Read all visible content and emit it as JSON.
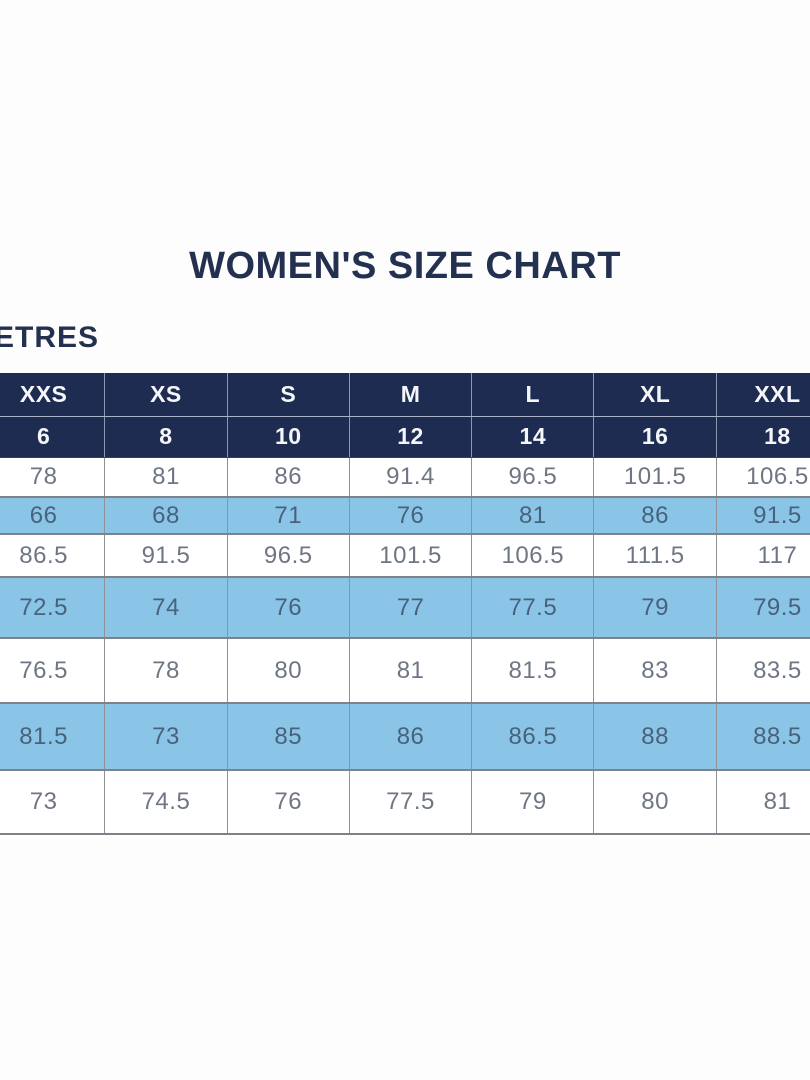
{
  "units_label": "ETRES",
  "colors": {
    "header_navy": "#1F2C52",
    "row_blue": "#8AC5E8",
    "title_navy": "#24304F"
  },
  "chart_data": {
    "type": "table",
    "title": "WOMEN'S SIZE CHART",
    "layout_hints": {
      "header_rows_background": "navy",
      "body_row_striping": [
        "white",
        "light-blue"
      ],
      "table_cropped_left_and_right": true
    },
    "header_rows": [
      [
        "XXS",
        "XS",
        "S",
        "M",
        "L",
        "XL",
        "XXL"
      ],
      [
        "6",
        "8",
        "10",
        "12",
        "14",
        "16",
        "18"
      ]
    ],
    "rows": [
      [
        "78",
        "81",
        "86",
        "91.4",
        "96.5",
        "101.5",
        "106.5"
      ],
      [
        "66",
        "68",
        "71",
        "76",
        "81",
        "86",
        "91.5"
      ],
      [
        "86.5",
        "91.5",
        "96.5",
        "101.5",
        "106.5",
        "111.5",
        "117"
      ],
      [
        "72.5",
        "74",
        "76",
        "77",
        "77.5",
        "79",
        "79.5"
      ],
      [
        "76.5",
        "78",
        "80",
        "81",
        "81.5",
        "83",
        "83.5"
      ],
      [
        "81.5",
        "73",
        "85",
        "86",
        "86.5",
        "88",
        "88.5"
      ],
      [
        "73",
        "74.5",
        "76",
        "77.5",
        "79",
        "80",
        "81"
      ]
    ]
  }
}
